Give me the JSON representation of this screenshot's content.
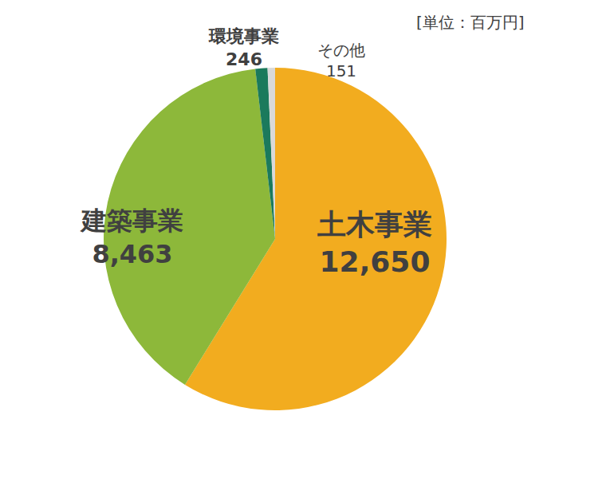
{
  "chart_data": {
    "type": "pie",
    "title": "[単位：百万円]",
    "categories": [
      "土木事業",
      "建築事業",
      "環境事業",
      "その他"
    ],
    "values": [
      12650,
      8463,
      246,
      151
    ],
    "value_labels": [
      "12,650",
      "8,463",
      "246",
      "151"
    ],
    "colors": [
      "#f2ac1f",
      "#8db83a",
      "#1b7a5c",
      "#d9d9d9"
    ],
    "data_labels": true
  }
}
